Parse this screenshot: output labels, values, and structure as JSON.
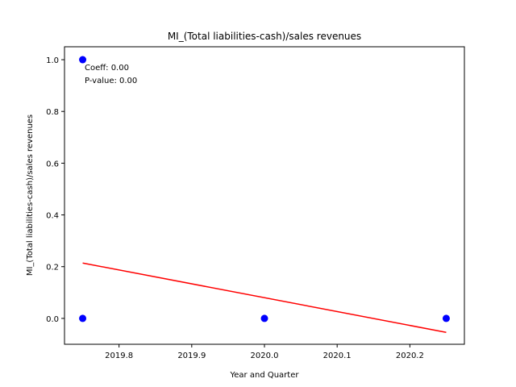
{
  "chart_data": {
    "type": "scatter",
    "title": "MI_(Total liabilities-cash)/sales revenues",
    "xlabel": "Year and Quarter",
    "ylabel": "MI_(Total liabilities-cash)/sales revenues",
    "xlim": [
      2019.725,
      2020.275
    ],
    "ylim": [
      -0.1,
      1.05
    ],
    "xticks": [
      2019.8,
      2019.9,
      2020.0,
      2020.1,
      2020.2
    ],
    "xtick_labels": [
      "2019.8",
      "2019.9",
      "2020.0",
      "2020.1",
      "2020.2"
    ],
    "yticks": [
      0.0,
      0.2,
      0.4,
      0.6,
      0.8,
      1.0
    ],
    "ytick_labels": [
      "0.0",
      "0.2",
      "0.4",
      "0.6",
      "0.8",
      "1.0"
    ],
    "grid": false,
    "series": [
      {
        "type": "scatter",
        "color": "#0000ff",
        "points": [
          {
            "x": 2019.75,
            "y": 1.0
          },
          {
            "x": 2019.75,
            "y": 0.0
          },
          {
            "x": 2020.0,
            "y": 0.0
          },
          {
            "x": 2020.25,
            "y": 0.0
          }
        ]
      },
      {
        "type": "line",
        "color": "#ff0000",
        "points": [
          {
            "x": 2019.75,
            "y": 0.214
          },
          {
            "x": 2020.25,
            "y": -0.054
          }
        ]
      }
    ],
    "annotations": [
      "Coeff: 0.00",
      "P-value: 0.00"
    ]
  }
}
